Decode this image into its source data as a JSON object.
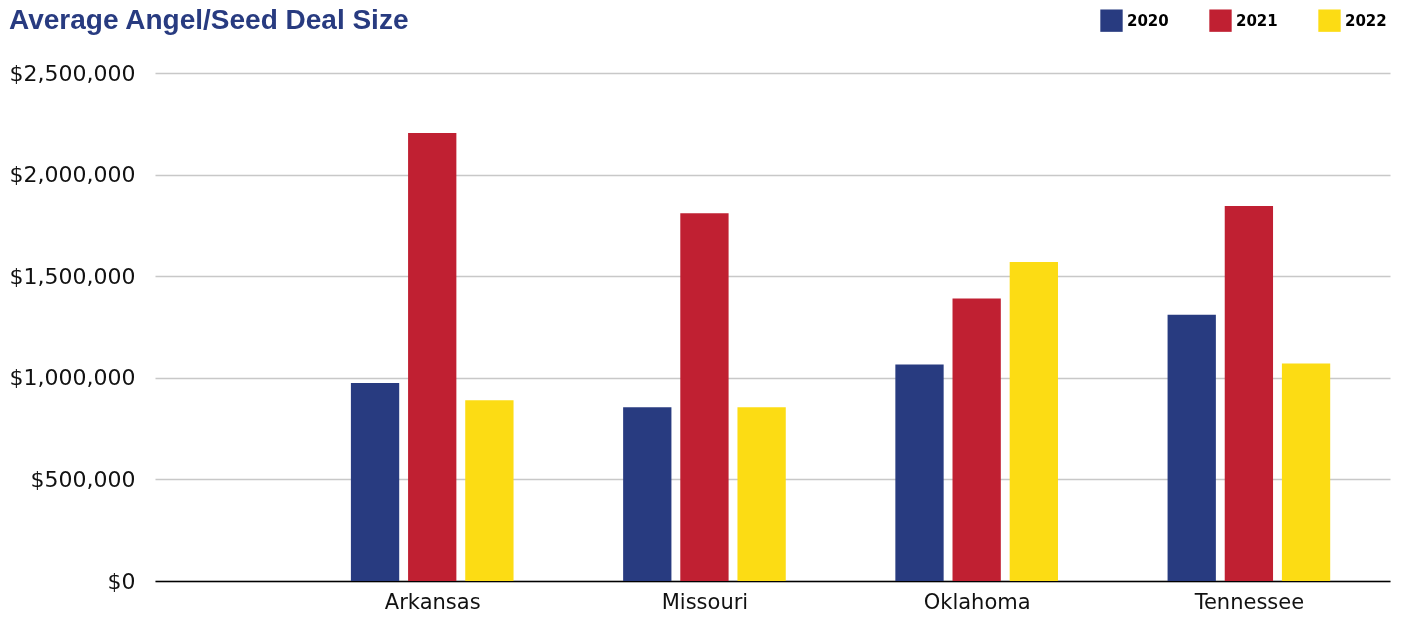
{
  "chart_data": {
    "type": "bar",
    "title": "Average Angel/Seed Deal Size",
    "categories": [
      "Arkansas",
      "Missouri",
      "Oklahoma",
      "Tennessee"
    ],
    "series": [
      {
        "name": "2020",
        "color": "#283b80",
        "values": [
          975000,
          855000,
          1065000,
          1310000
        ]
      },
      {
        "name": "2021",
        "color": "#c02032",
        "values": [
          2205000,
          1810000,
          1390000,
          1845000
        ]
      },
      {
        "name": "2022",
        "color": "#fcdc14",
        "values": [
          890000,
          855000,
          1570000,
          1070000
        ]
      }
    ],
    "ylim": [
      0,
      2500000
    ],
    "yticks": [
      {
        "value": 0,
        "label": "$0"
      },
      {
        "value": 500000,
        "label": "$500,000"
      },
      {
        "value": 1000000,
        "label": "$1,000,000"
      },
      {
        "value": 1500000,
        "label": "$1,500,000"
      },
      {
        "value": 2000000,
        "label": "$2,000,000"
      },
      {
        "value": 2500000,
        "label": "$2,500,000"
      }
    ],
    "grid": "y",
    "legend": "top right"
  }
}
